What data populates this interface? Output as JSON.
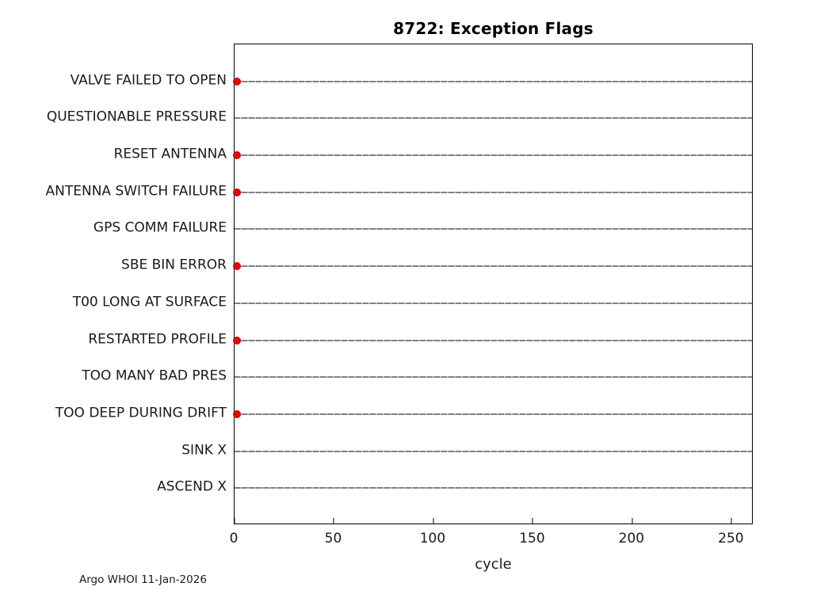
{
  "chart_data": {
    "type": "scatter",
    "title": "8722: Exception Flags",
    "xlabel": "cycle",
    "xlim": [
      0,
      261
    ],
    "xticks": [
      0,
      50,
      100,
      150,
      200,
      250
    ],
    "grid": false,
    "legend": "none",
    "marker_color": "#ee0000",
    "line_color": "#000000",
    "rows": [
      {
        "label": "VALVE FAILED TO OPEN",
        "markers": [
          1
        ]
      },
      {
        "label": "QUESTIONABLE PRESSURE",
        "markers": []
      },
      {
        "label": "RESET ANTENNA",
        "markers": [
          1
        ]
      },
      {
        "label": "ANTENNA SWITCH FAILURE",
        "markers": [
          1
        ]
      },
      {
        "label": "GPS COMM FAILURE",
        "markers": []
      },
      {
        "label": "SBE BIN ERROR",
        "markers": [
          1
        ]
      },
      {
        "label": "T00 LONG AT SURFACE",
        "markers": []
      },
      {
        "label": "RESTARTED PROFILE",
        "markers": [
          1
        ]
      },
      {
        "label": "TOO MANY BAD PRES",
        "markers": []
      },
      {
        "label": "TOO DEEP DURING DRIFT",
        "markers": [
          1
        ]
      },
      {
        "label": "SINK X",
        "markers": []
      },
      {
        "label": "ASCEND X",
        "markers": []
      }
    ],
    "annotation": "Argo WHOI 11-Jan-2026"
  }
}
